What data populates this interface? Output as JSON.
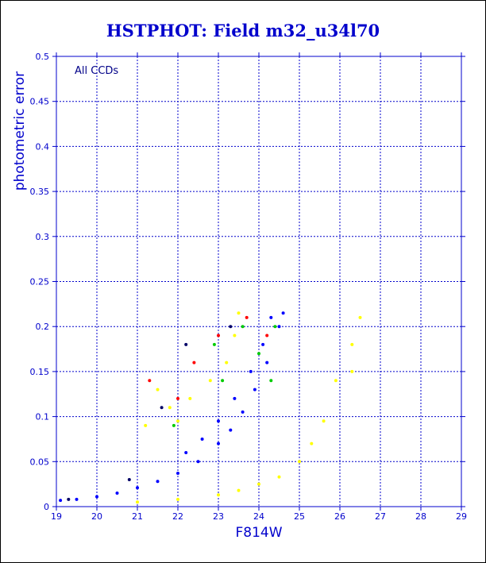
{
  "colors": {
    "axis": "#0000cc",
    "grid": "#0000cc",
    "title": "#0000cc",
    "label": "#0000cc",
    "annotation": "#000088",
    "series": [
      "#0000ff",
      "#ffff00",
      "#00cc00",
      "#ff0000",
      "#000066",
      "#00cccc",
      "#ff00ff"
    ]
  },
  "chart_data": {
    "type": "scatter",
    "title": "HSTPHOT: Field m32_u34l70",
    "xlabel": "F814W",
    "ylabel": "photometric error",
    "annotation": "All CCDs",
    "xlim": [
      19,
      29
    ],
    "ylim": [
      0,
      0.5
    ],
    "xticks": [
      "19",
      "20",
      "21",
      "22",
      "23",
      "24",
      "25",
      "26",
      "27",
      "28",
      "29"
    ],
    "yticks": [
      "0",
      "0.05",
      "0.1",
      "0.15",
      "0.2",
      "0.25",
      "0.3",
      "0.35",
      "0.4",
      "0.45",
      "0.5"
    ],
    "grid": true,
    "series": [
      {
        "color": "#0000ff",
        "description_points": "main error sequence",
        "points": [
          [
            19.1,
            0.007
          ],
          [
            19.5,
            0.008
          ],
          [
            20.0,
            0.011
          ],
          [
            20.5,
            0.015
          ],
          [
            21.0,
            0.021
          ],
          [
            21.5,
            0.028
          ],
          [
            22.0,
            0.037
          ],
          [
            22.5,
            0.05
          ],
          [
            23.0,
            0.07
          ],
          [
            23.3,
            0.085
          ],
          [
            23.6,
            0.105
          ],
          [
            23.9,
            0.13
          ],
          [
            24.2,
            0.16
          ],
          [
            24.5,
            0.2
          ],
          [
            24.6,
            0.215
          ],
          [
            22.2,
            0.06
          ],
          [
            22.6,
            0.075
          ],
          [
            23.0,
            0.095
          ],
          [
            23.4,
            0.12
          ],
          [
            23.8,
            0.15
          ],
          [
            24.1,
            0.18
          ],
          [
            24.3,
            0.21
          ]
        ]
      },
      {
        "color": "#ffff00",
        "description_points": "faint companion sequence and upper scatter",
        "points": [
          [
            21.0,
            0.005
          ],
          [
            22.0,
            0.008
          ],
          [
            23.0,
            0.013
          ],
          [
            23.5,
            0.018
          ],
          [
            24.0,
            0.025
          ],
          [
            24.5,
            0.033
          ],
          [
            25.0,
            0.05
          ],
          [
            25.3,
            0.07
          ],
          [
            25.6,
            0.095
          ],
          [
            25.9,
            0.14
          ],
          [
            26.5,
            0.21
          ],
          [
            26.3,
            0.18
          ],
          [
            26.3,
            0.15
          ],
          [
            21.5,
            0.13
          ],
          [
            21.8,
            0.11
          ],
          [
            22.3,
            0.12
          ],
          [
            22.8,
            0.14
          ],
          [
            23.2,
            0.16
          ],
          [
            23.4,
            0.19
          ],
          [
            23.5,
            0.215
          ],
          [
            21.2,
            0.09
          ],
          [
            22.0,
            0.095
          ]
        ]
      },
      {
        "color": "#00cc00",
        "description_points": "scattered points",
        "points": [
          [
            22.9,
            0.18
          ],
          [
            23.6,
            0.2
          ],
          [
            24.0,
            0.17
          ],
          [
            24.3,
            0.14
          ],
          [
            21.9,
            0.09
          ],
          [
            23.1,
            0.14
          ],
          [
            24.4,
            0.2
          ]
        ]
      },
      {
        "color": "#ff0000",
        "description_points": "scattered points",
        "points": [
          [
            21.3,
            0.14
          ],
          [
            22.4,
            0.16
          ],
          [
            23.0,
            0.19
          ],
          [
            23.7,
            0.21
          ],
          [
            22.0,
            0.12
          ],
          [
            24.2,
            0.19
          ]
        ]
      },
      {
        "color": "#000066",
        "description_points": "scattered points",
        "points": [
          [
            21.6,
            0.11
          ],
          [
            22.2,
            0.18
          ],
          [
            23.3,
            0.2
          ],
          [
            19.3,
            0.008
          ],
          [
            20.8,
            0.03
          ]
        ]
      }
    ]
  }
}
